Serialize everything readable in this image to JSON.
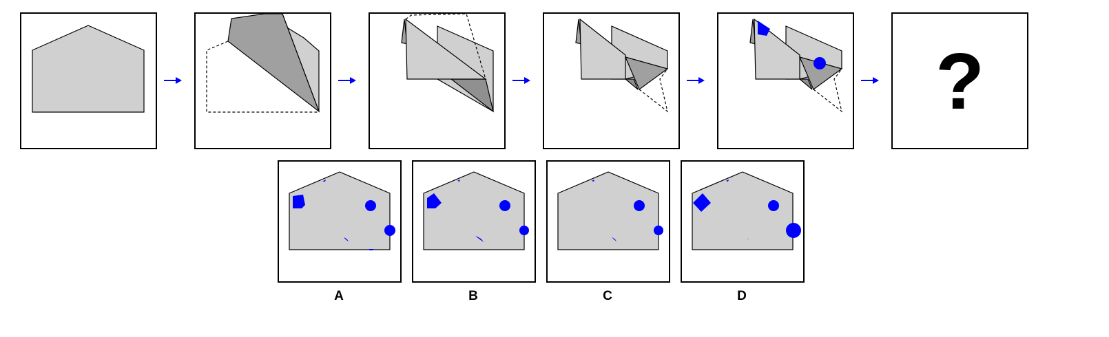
{
  "colors": {
    "paper": "#d0d0d0",
    "fold_dark": "#a0a0a0",
    "fold_darker": "#909090",
    "marker": "#0000ff",
    "arrow": "#0000ff",
    "outline": "#000000"
  },
  "sequence": {
    "steps": [
      {
        "name": "unfolded-paper"
      },
      {
        "name": "fold-1"
      },
      {
        "name": "fold-2"
      },
      {
        "name": "fold-3"
      },
      {
        "name": "punched"
      },
      {
        "name": "question"
      }
    ],
    "question_mark": "?"
  },
  "options": [
    {
      "label": "A"
    },
    {
      "label": "B"
    },
    {
      "label": "C"
    },
    {
      "label": "D"
    }
  ]
}
